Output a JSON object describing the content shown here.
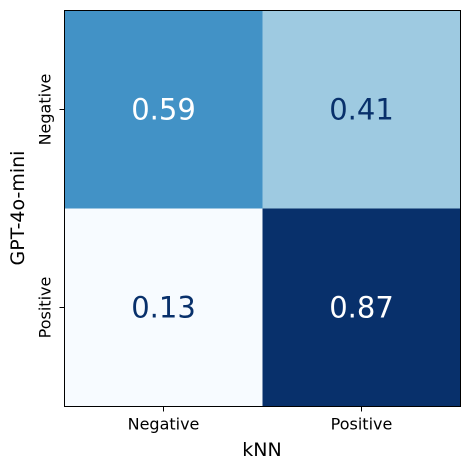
{
  "chart_data": {
    "type": "heatmap",
    "title": "",
    "xlabel": "kNN",
    "ylabel": "GPT-4o-mini",
    "x_categories": [
      "Negative",
      "Positive"
    ],
    "y_categories": [
      "Negative",
      "Positive"
    ],
    "values": [
      [
        0.59,
        0.41
      ],
      [
        0.13,
        0.87
      ]
    ],
    "value_labels": [
      [
        "0.59",
        "0.41"
      ],
      [
        "0.13",
        "0.87"
      ]
    ],
    "colormap": "Blues",
    "vmin": 0.13,
    "vmax": 0.87,
    "colors": {
      "cells": [
        [
          "#4292c6",
          "#9ecae1"
        ],
        [
          "#f7fbff",
          "#08306b"
        ]
      ],
      "text_light": "#ffffff",
      "text_dark": "#08306b",
      "frame": "#000000"
    },
    "grid": false,
    "legend": "none"
  }
}
